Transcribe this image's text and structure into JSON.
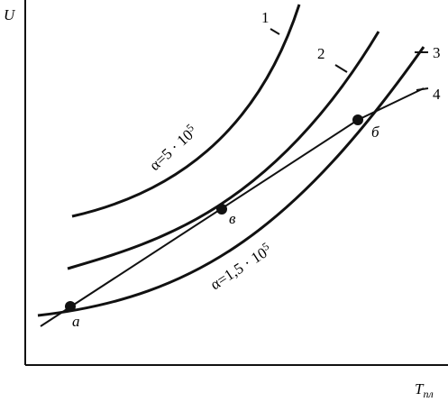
{
  "axes": {
    "y_label": "U",
    "x_label": "T",
    "x_label_sub": "пл"
  },
  "curves": [
    {
      "label": "1"
    },
    {
      "label": "2"
    },
    {
      "label": "3"
    },
    {
      "label": "4"
    }
  ],
  "annotations": [
    {
      "text": "α=5 · 10",
      "exponent": "5"
    },
    {
      "text": "α=1,5 · 10",
      "exponent": "5"
    }
  ],
  "points": [
    {
      "label": "a"
    },
    {
      "label": "в"
    },
    {
      "label": "б"
    }
  ]
}
